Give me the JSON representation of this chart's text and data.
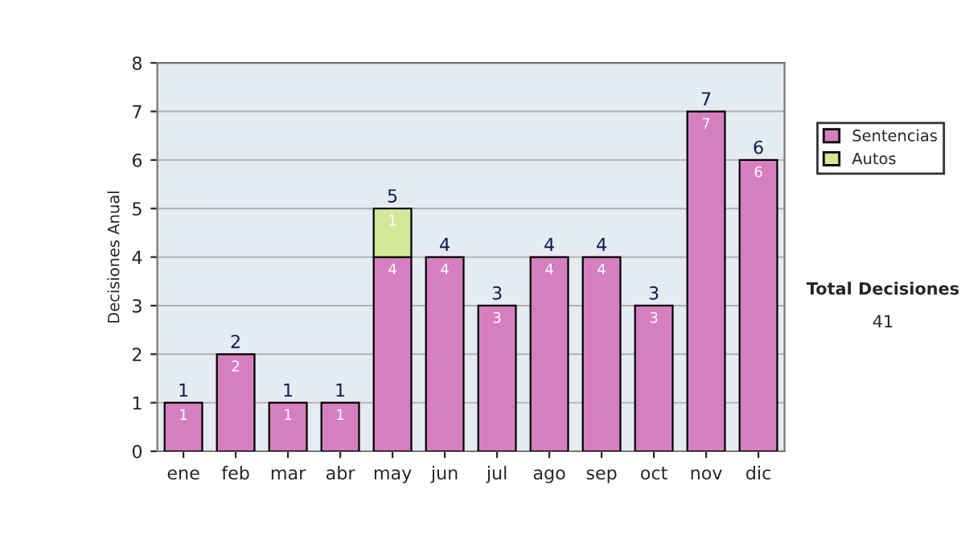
{
  "chart_data": {
    "type": "bar",
    "stacked": true,
    "ylabel": "Decisiones Anual",
    "categories": [
      "ene",
      "feb",
      "mar",
      "abr",
      "may",
      "jun",
      "jul",
      "ago",
      "sep",
      "oct",
      "nov",
      "dic"
    ],
    "series": [
      {
        "name": "Sentencias",
        "color": "#d67fc0",
        "values": [
          1,
          2,
          1,
          1,
          4,
          4,
          3,
          4,
          4,
          3,
          7,
          6
        ],
        "value_labels": [
          "1",
          "2",
          "1",
          "1",
          "4",
          "4",
          "3",
          "4",
          "4",
          "3",
          "7",
          "6"
        ]
      },
      {
        "name": "Autos",
        "color": "#d4e89a",
        "values": [
          0,
          0,
          0,
          0,
          1,
          0,
          0,
          0,
          0,
          0,
          0,
          0
        ],
        "value_labels": [
          null,
          null,
          null,
          null,
          "1",
          null,
          null,
          null,
          null,
          null,
          null,
          null
        ]
      }
    ],
    "totals": [
      "1",
      "2",
      "1",
      "1",
      "5",
      "4",
      "3",
      "4",
      "4",
      "3",
      "7",
      "6"
    ],
    "ylim": [
      0,
      8
    ],
    "yticks": [
      0,
      1,
      2,
      3,
      4,
      5,
      6,
      7,
      8
    ],
    "grid": "y",
    "legend": "right",
    "annotations": [
      "Total Decisiones",
      "41"
    ]
  }
}
